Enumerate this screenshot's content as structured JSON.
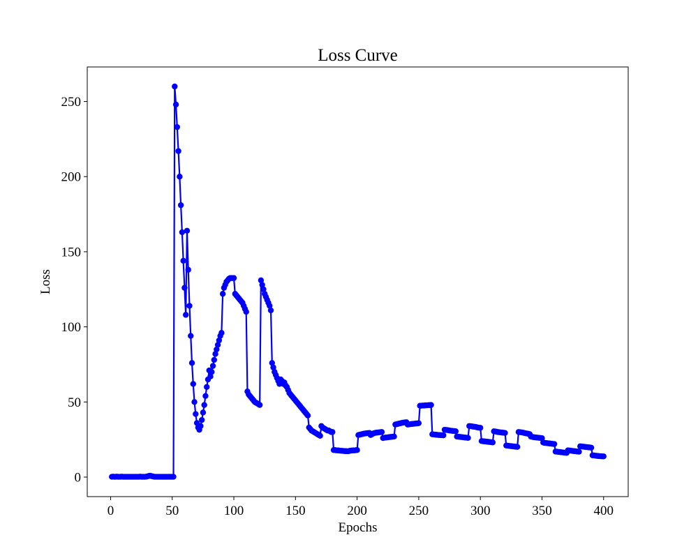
{
  "chart_data": {
    "type": "line",
    "title": "Loss Curve",
    "xlabel": "Epochs",
    "ylabel": "Loss",
    "color": "#0000ff",
    "grid": false,
    "x": [
      1,
      2,
      3,
      4,
      5,
      6,
      7,
      8,
      9,
      10,
      11,
      12,
      13,
      14,
      15,
      16,
      17,
      18,
      19,
      20,
      21,
      22,
      23,
      24,
      25,
      26,
      27,
      28,
      29,
      30,
      31,
      32,
      33,
      34,
      35,
      36,
      37,
      38,
      39,
      40,
      41,
      42,
      43,
      44,
      45,
      46,
      47,
      48,
      49,
      50,
      51,
      52,
      53,
      54,
      55,
      56,
      57,
      58,
      59,
      60,
      61,
      62,
      63,
      64,
      65,
      66,
      67,
      68,
      69,
      70,
      71,
      72,
      73,
      74,
      75,
      76,
      77,
      78,
      79,
      80,
      81,
      82,
      83,
      84,
      85,
      86,
      87,
      88,
      89,
      90,
      91,
      92,
      93,
      94,
      95,
      96,
      97,
      98,
      99,
      100,
      101,
      102,
      103,
      104,
      105,
      106,
      107,
      108,
      109,
      110,
      111,
      112,
      113,
      114,
      115,
      116,
      117,
      118,
      119,
      120,
      121,
      122,
      123,
      124,
      125,
      126,
      127,
      128,
      129,
      130,
      131,
      132,
      133,
      134,
      135,
      136,
      137,
      138,
      139,
      140,
      141,
      142,
      143,
      144,
      145,
      146,
      147,
      148,
      149,
      150,
      151,
      152,
      153,
      154,
      155,
      156,
      157,
      158,
      159,
      160,
      161,
      162,
      163,
      164,
      165,
      166,
      167,
      168,
      169,
      170,
      171,
      172,
      173,
      174,
      175,
      176,
      177,
      178,
      179,
      180,
      181,
      182,
      183,
      184,
      185,
      186,
      187,
      188,
      189,
      190,
      191,
      192,
      193,
      194,
      195,
      196,
      197,
      198,
      199,
      200,
      201,
      202,
      203,
      204,
      205,
      206,
      207,
      208,
      209,
      210,
      211,
      212,
      213,
      214,
      215,
      216,
      217,
      218,
      219,
      220,
      221,
      222,
      223,
      224,
      225,
      226,
      227,
      228,
      229,
      230,
      231,
      232,
      233,
      234,
      235,
      236,
      237,
      238,
      239,
      240,
      241,
      242,
      243,
      244,
      245,
      246,
      247,
      248,
      249,
      250,
      251,
      252,
      253,
      254,
      255,
      256,
      257,
      258,
      259,
      260,
      261,
      262,
      263,
      264,
      265,
      266,
      267,
      268,
      269,
      270,
      271,
      272,
      273,
      274,
      275,
      276,
      277,
      278,
      279,
      280,
      281,
      282,
      283,
      284,
      285,
      286,
      287,
      288,
      289,
      290,
      291,
      292,
      293,
      294,
      295,
      296,
      297,
      298,
      299,
      300,
      301,
      302,
      303,
      304,
      305,
      306,
      307,
      308,
      309,
      310,
      311,
      312,
      313,
      314,
      315,
      316,
      317,
      318,
      319,
      320,
      321,
      322,
      323,
      324,
      325,
      326,
      327,
      328,
      329,
      330,
      331,
      332,
      333,
      334,
      335,
      336,
      337,
      338,
      339,
      340,
      341,
      342,
      343,
      344,
      345,
      346,
      347,
      348,
      349,
      350,
      351,
      352,
      353,
      354,
      355,
      356,
      357,
      358,
      359,
      360,
      361,
      362,
      363,
      364,
      365,
      366,
      367,
      368,
      369,
      370,
      371,
      372,
      373,
      374,
      375,
      376,
      377,
      378,
      379,
      380,
      381,
      382,
      383,
      384,
      385,
      386,
      387,
      388,
      389,
      390,
      391,
      392,
      393,
      394,
      395,
      396,
      397,
      398,
      399,
      400
    ],
    "values": [
      0.2,
      0.3,
      0.2,
      0.2,
      0.3,
      0.2,
      0.2,
      0.2,
      0.3,
      0.2,
      0.2,
      0.2,
      0.2,
      0.2,
      0.2,
      0.2,
      0.2,
      0.2,
      0.2,
      0.2,
      0.2,
      0.2,
      0.2,
      0.3,
      0.2,
      0.2,
      0.2,
      0.2,
      0.3,
      0.5,
      0.8,
      0.9,
      0.7,
      0.5,
      0.3,
      0.2,
      0.2,
      0.2,
      0.2,
      0.2,
      0.2,
      0.2,
      0.2,
      0.2,
      0.2,
      0.2,
      0.2,
      0.2,
      0.2,
      0.2,
      0.2,
      260,
      248,
      233,
      217,
      200,
      181,
      163,
      144,
      126,
      108,
      164,
      138,
      114,
      94,
      76,
      62,
      50,
      42,
      36,
      33,
      31.5,
      34,
      38,
      43,
      48,
      54,
      60,
      65,
      71,
      67,
      70,
      74,
      78,
      82,
      85,
      88,
      91,
      94,
      96,
      122,
      126,
      128,
      130,
      131,
      132,
      132.5,
      132.5,
      132.5,
      132.5,
      122,
      121,
      120,
      119,
      118,
      117,
      116,
      114,
      112,
      110,
      57,
      55,
      54,
      53,
      52,
      51,
      50,
      49.5,
      49,
      48.5,
      48,
      131,
      128,
      125,
      122,
      120,
      118,
      116,
      114,
      111,
      76,
      73,
      70,
      68,
      66,
      64,
      62,
      65,
      64,
      62,
      63,
      61,
      60,
      58,
      56,
      55,
      54,
      53,
      52,
      51,
      50,
      49,
      48,
      47,
      46,
      45,
      44,
      43,
      42,
      41,
      33,
      32,
      31,
      30.5,
      30,
      29.5,
      29,
      28.5,
      28,
      27.5,
      34,
      33,
      32.5,
      32,
      31.5,
      31,
      31,
      30.5,
      30,
      30,
      18,
      18,
      17.8,
      17.8,
      17.7,
      17.6,
      17.5,
      17.5,
      17.4,
      17.3,
      17.3,
      17.2,
      17.2,
      17.5,
      17.6,
      17.7,
      17.8,
      17.8,
      17.9,
      18,
      28,
      28.2,
      28.4,
      28.6,
      28.8,
      29,
      29.1,
      29.2,
      29.3,
      29.4,
      28,
      28.5,
      29,
      29.3,
      29.5,
      29.6,
      29.7,
      29.8,
      29.9,
      30,
      26,
      26.2,
      26.3,
      26.4,
      26.5,
      26.6,
      26.7,
      26.8,
      26.9,
      27,
      35,
      35.2,
      35.4,
      35.6,
      35.8,
      36,
      36.2,
      36.3,
      36.4,
      36.5,
      35,
      35.1,
      35.2,
      35.3,
      35.4,
      35.5,
      35.6,
      35.7,
      35.8,
      35.9,
      47.5,
      47.5,
      47.6,
      47.6,
      47.7,
      47.8,
      47.8,
      47.9,
      47.9,
      48,
      28.5,
      28.4,
      28.3,
      28.2,
      28.1,
      28,
      28,
      27.9,
      27.9,
      27.8,
      31.5,
      31.4,
      31.3,
      31.2,
      31,
      30.9,
      30.8,
      30.7,
      30.6,
      30.5,
      27,
      26.9,
      26.8,
      26.7,
      26.6,
      26.5,
      26.4,
      26.3,
      26.2,
      26.1,
      34,
      33.9,
      33.8,
      33.6,
      33.5,
      33.4,
      33.2,
      33,
      32.9,
      32.8,
      24,
      23.9,
      23.8,
      23.7,
      23.6,
      23.5,
      23.4,
      23.3,
      23.2,
      23.1,
      30.5,
      30.4,
      30.2,
      30,
      29.9,
      29.8,
      29.7,
      29.6,
      29.5,
      29.4,
      21,
      20.9,
      20.8,
      20.7,
      20.6,
      20.5,
      20.4,
      20.3,
      20.2,
      20.1,
      30,
      29.9,
      29.8,
      29.7,
      29.5,
      29.3,
      29.1,
      29,
      28.8,
      28.6,
      27,
      26.8,
      26.6,
      26.5,
      26.4,
      26.3,
      26.2,
      26.1,
      26,
      25.9,
      23,
      22.8,
      22.7,
      22.6,
      22.5,
      22.4,
      22.3,
      22.2,
      22.1,
      22,
      17,
      16.9,
      16.8,
      16.7,
      16.6,
      16.5,
      16.4,
      16.3,
      16.2,
      16.1,
      17.8,
      17.7,
      17.6,
      17.5,
      17.4,
      17.3,
      17.2,
      17.1,
      17,
      16.9,
      20.5,
      20.4,
      20.3,
      20.2,
      20.1,
      20,
      19.9,
      19.8,
      19.7,
      19.6,
      14.5,
      14.4,
      14.3,
      14.2,
      14.1,
      14,
      13.9,
      13.9,
      13.8,
      13.8
    ],
    "xlim": [
      -18.95,
      419.95
    ],
    "xticks": [
      0,
      50,
      100,
      150,
      200,
      250,
      300,
      350,
      400
    ],
    "ylim": [
      -13,
      273
    ],
    "yticks": [
      0,
      50,
      100,
      150,
      200,
      250
    ]
  }
}
